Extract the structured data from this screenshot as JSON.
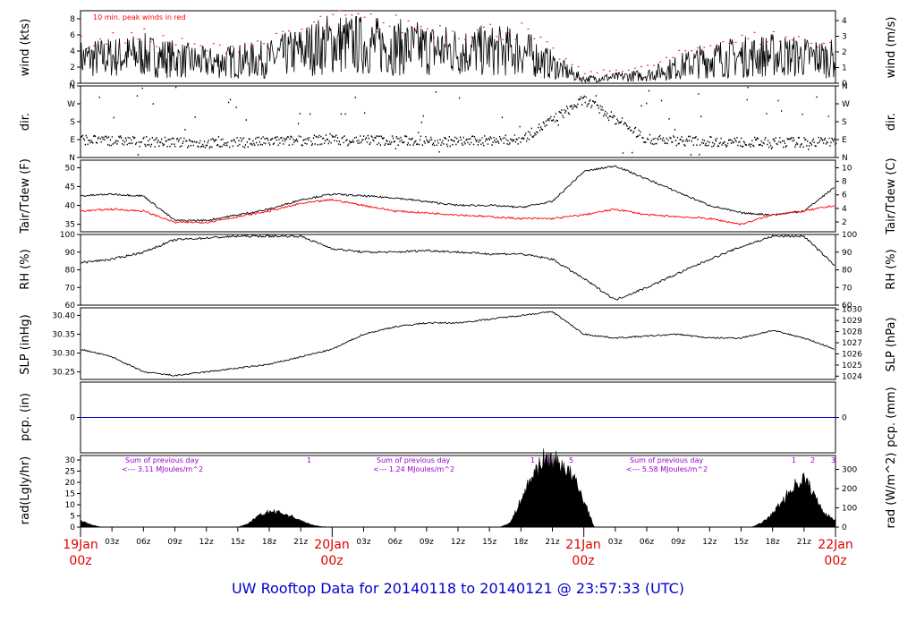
{
  "footer_title": "UW Rooftop Data for 20140118  to  20140121 @ 23:57:33  (UTC)",
  "wind_note": "10 min. peak winds in red",
  "panels": [
    {
      "left_label": "wind (kts)",
      "right_label": "wind (m/s)"
    },
    {
      "left_label": "dir.",
      "right_label": "dir."
    },
    {
      "left_label": "Tair/Tdew (F)",
      "right_label": "Tair/Tdew (C)"
    },
    {
      "left_label": "RH (%)",
      "right_label": "RH (%)"
    },
    {
      "left_label": "SLP (inHg)",
      "right_label": "SLP (hPa)"
    },
    {
      "left_label": "pcp. (in)",
      "right_label": "pcp. (mm)"
    },
    {
      "left_label": "rad(Lgly/hr)",
      "right_label": "rad (W/m^2)"
    }
  ],
  "x_axis": {
    "hour_ticks": [
      "03z",
      "06z",
      "09z",
      "12z",
      "15z",
      "18z",
      "21z",
      "03z",
      "06z",
      "09z",
      "12z",
      "15z",
      "18z",
      "21z",
      "03z",
      "06z",
      "09z",
      "12z",
      "15z",
      "18z",
      "21z"
    ],
    "days": [
      {
        "date": "19Jan",
        "hour": "00z"
      },
      {
        "date": "20Jan",
        "hour": "00z"
      },
      {
        "date": "21Jan",
        "hour": "00z"
      },
      {
        "date": "22Jan",
        "hour": "00z"
      }
    ]
  },
  "rad_annotations": [
    {
      "line1": "Sum of previous day",
      "line2": "<--- 3.11 MJoules/m^2"
    },
    {
      "line1": "Sum of previous day",
      "line2": "<--- 1.24 MJoules/m^2"
    },
    {
      "line1": "Sum of previous day",
      "line2": "<--- 5.58 MJoules/m^2"
    }
  ],
  "rad_markers": [
    "1",
    "1",
    "3",
    "5",
    "1",
    "2",
    "3"
  ],
  "colors": {
    "tair": "#000000",
    "tdew": "#ff0000",
    "peak_wind": "#ff0000",
    "precip": "#0000cc",
    "day_label": "#e00000",
    "annotation": "#9900cc",
    "footer": "#0000cc"
  },
  "chart_data": [
    {
      "type": "line",
      "title": "",
      "ylabel": "wind (kts)",
      "ylabel_right": "wind (m/s)",
      "ylim": [
        0,
        9
      ],
      "yticks": [
        0,
        2,
        4,
        6,
        8
      ],
      "yticks_right": [
        0,
        1,
        2,
        3,
        4
      ],
      "x_hours": [
        0,
        6,
        12,
        18,
        24,
        30,
        36,
        42,
        48,
        54,
        60,
        66,
        72
      ],
      "series": [
        {
          "values": [
            3.0,
            3.5,
            2.5,
            3.0,
            5.0,
            4.5,
            4.0,
            4.0,
            0.5,
            1.0,
            3.0,
            3.5,
            3.0
          ]
        }
      ]
    },
    {
      "type": "scatter",
      "title": "",
      "ylabel": "dir.",
      "yticks": [
        "N",
        "E",
        "S",
        "W",
        "N"
      ],
      "ylim": [
        0,
        360
      ],
      "x_hours": [
        0,
        6,
        12,
        18,
        24,
        30,
        36,
        42,
        48,
        54,
        60,
        66,
        72
      ],
      "values": [
        90,
        80,
        70,
        80,
        90,
        85,
        80,
        90,
        290,
        90,
        80,
        75,
        80
      ]
    },
    {
      "type": "line",
      "title": "",
      "ylabel": "Tair/Tdew (F)",
      "ylabel_right": "Tair/Tdew (C)",
      "ylim": [
        33,
        52
      ],
      "yticks": [
        35,
        40,
        45,
        50
      ],
      "yticks_right": [
        2,
        4,
        6,
        8,
        10
      ],
      "x_hours": [
        0,
        3,
        6,
        9,
        12,
        15,
        18,
        21,
        24,
        27,
        30,
        33,
        36,
        39,
        42,
        45,
        48,
        51,
        54,
        57,
        60,
        63,
        66,
        69,
        72
      ],
      "series": [
        {
          "values": [
            42.5,
            43.0,
            42.5,
            36.0,
            36.0,
            37.5,
            39.0,
            41.5,
            43.0,
            42.5,
            42.0,
            41.0,
            40.0,
            40.0,
            39.5,
            41.0,
            49.0,
            50.5,
            47.0,
            43.5,
            40.0,
            38.0,
            37.5,
            38.5,
            45.0
          ]
        },
        {
          "values": [
            38.5,
            39.0,
            38.5,
            35.5,
            35.5,
            37.0,
            38.5,
            40.5,
            41.5,
            40.0,
            38.5,
            38.0,
            37.5,
            37.0,
            36.5,
            36.5,
            37.5,
            39.0,
            37.5,
            37.0,
            36.5,
            35.0,
            37.5,
            38.5,
            40.0
          ]
        }
      ]
    },
    {
      "type": "line",
      "title": "",
      "ylabel": "RH (%)",
      "ylim": [
        60,
        100
      ],
      "yticks": [
        60,
        70,
        80,
        90,
        100
      ],
      "x_hours": [
        0,
        3,
        6,
        9,
        12,
        15,
        18,
        21,
        24,
        27,
        30,
        33,
        36,
        39,
        42,
        45,
        48,
        51,
        54,
        57,
        60,
        63,
        66,
        69,
        72
      ],
      "series": [
        {
          "values": [
            84,
            86,
            90,
            97,
            98,
            99,
            99,
            99,
            92,
            90,
            90,
            91,
            90,
            89,
            89,
            86,
            75,
            63,
            70,
            78,
            86,
            93,
            99,
            99,
            82
          ]
        }
      ]
    },
    {
      "type": "line",
      "title": "",
      "ylabel": "SLP (inHg)",
      "ylabel_right": "SLP (hPa)",
      "ylim": [
        30.23,
        30.42
      ],
      "yticks": [
        30.25,
        30.3,
        30.35,
        30.4
      ],
      "yticks_right": [
        1024,
        1025,
        1026,
        1027,
        1028,
        1029,
        1030
      ],
      "x_hours": [
        0,
        3,
        6,
        9,
        12,
        15,
        18,
        21,
        24,
        27,
        30,
        33,
        36,
        39,
        42,
        45,
        48,
        51,
        54,
        57,
        60,
        63,
        66,
        69,
        72
      ],
      "series": [
        {
          "values": [
            30.31,
            30.29,
            30.25,
            30.24,
            30.25,
            30.26,
            30.27,
            30.29,
            30.31,
            30.35,
            30.37,
            30.38,
            30.38,
            30.39,
            30.4,
            30.41,
            30.35,
            30.34,
            30.345,
            30.35,
            30.34,
            30.34,
            30.36,
            30.34,
            30.31
          ]
        }
      ]
    },
    {
      "type": "line",
      "title": "",
      "ylabel": "pcp. (in)",
      "ylabel_right": "pcp. (mm)",
      "ylim": [
        -0.5,
        0.5
      ],
      "yticks": [
        0
      ],
      "yticks_right": [
        0
      ],
      "x_hours": [
        0,
        72
      ],
      "series": [
        {
          "values": [
            0,
            0
          ]
        }
      ]
    },
    {
      "type": "area",
      "title": "",
      "ylabel": "rad(Lgly/hr)",
      "ylabel_right": "rad (W/m^2)",
      "ylim": [
        0,
        32
      ],
      "yticks": [
        0,
        5,
        10,
        15,
        20,
        25,
        30
      ],
      "yticks_right": [
        0,
        100,
        200,
        300
      ],
      "x_hours": [
        0,
        1,
        2,
        15,
        16,
        17,
        18,
        19,
        20,
        21,
        22,
        23,
        24,
        40,
        41,
        42,
        43,
        44,
        45,
        46,
        47,
        48,
        49,
        64,
        65,
        66,
        67,
        68,
        69,
        70,
        71,
        72
      ],
      "values": [
        3,
        1,
        0,
        0,
        1.5,
        5,
        7,
        6.5,
        5,
        3,
        1,
        0.2,
        0,
        0,
        2,
        12,
        22,
        30,
        30,
        28,
        22,
        12,
        0,
        0,
        2,
        6,
        12,
        18,
        22,
        14,
        6,
        3
      ]
    }
  ]
}
